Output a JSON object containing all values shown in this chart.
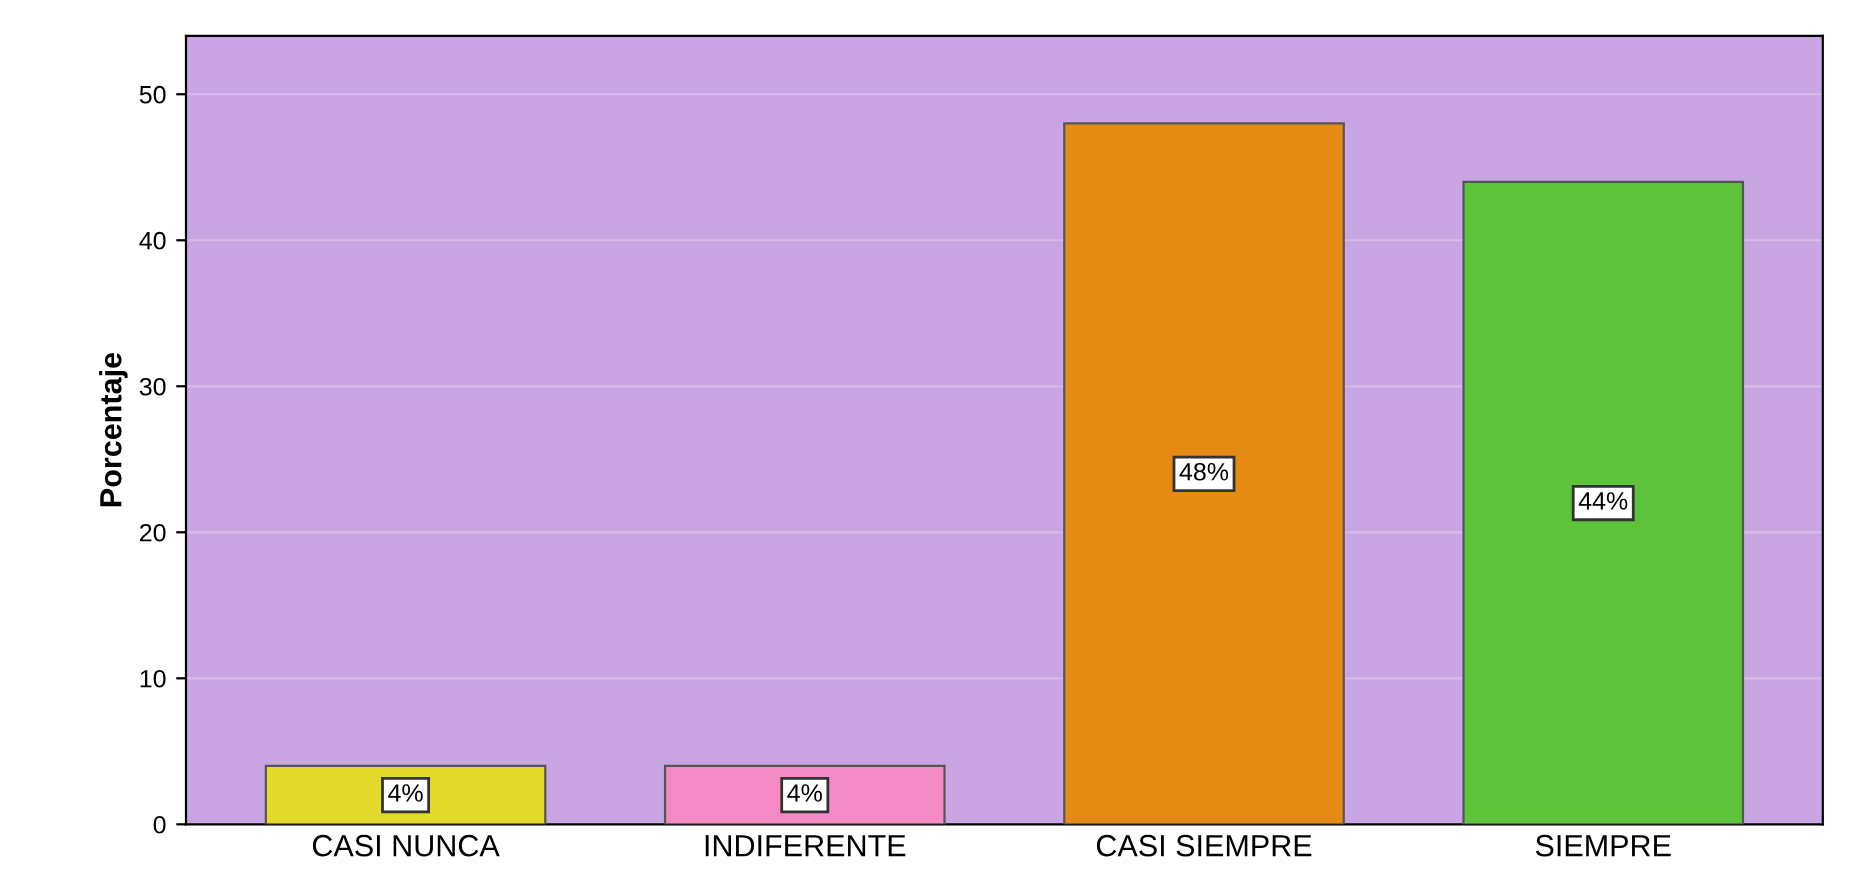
{
  "chart_data": {
    "type": "bar",
    "ylabel": "Porcentaje",
    "categories": [
      "CASI NUNCA",
      "INDIFERENTE",
      "CASI SIEMPRE",
      "SIEMPRE"
    ],
    "values": [
      4,
      4,
      48,
      44
    ],
    "colors": [
      "#e3d92a",
      "#f48ac4",
      "#e58a12",
      "#5cc33a"
    ],
    "value_labels": [
      "4%",
      "4%",
      "48%",
      "44%"
    ],
    "ylim": [
      0,
      54
    ],
    "yticks": [
      0,
      10,
      20,
      30,
      40,
      50
    ],
    "grid": "y"
  }
}
